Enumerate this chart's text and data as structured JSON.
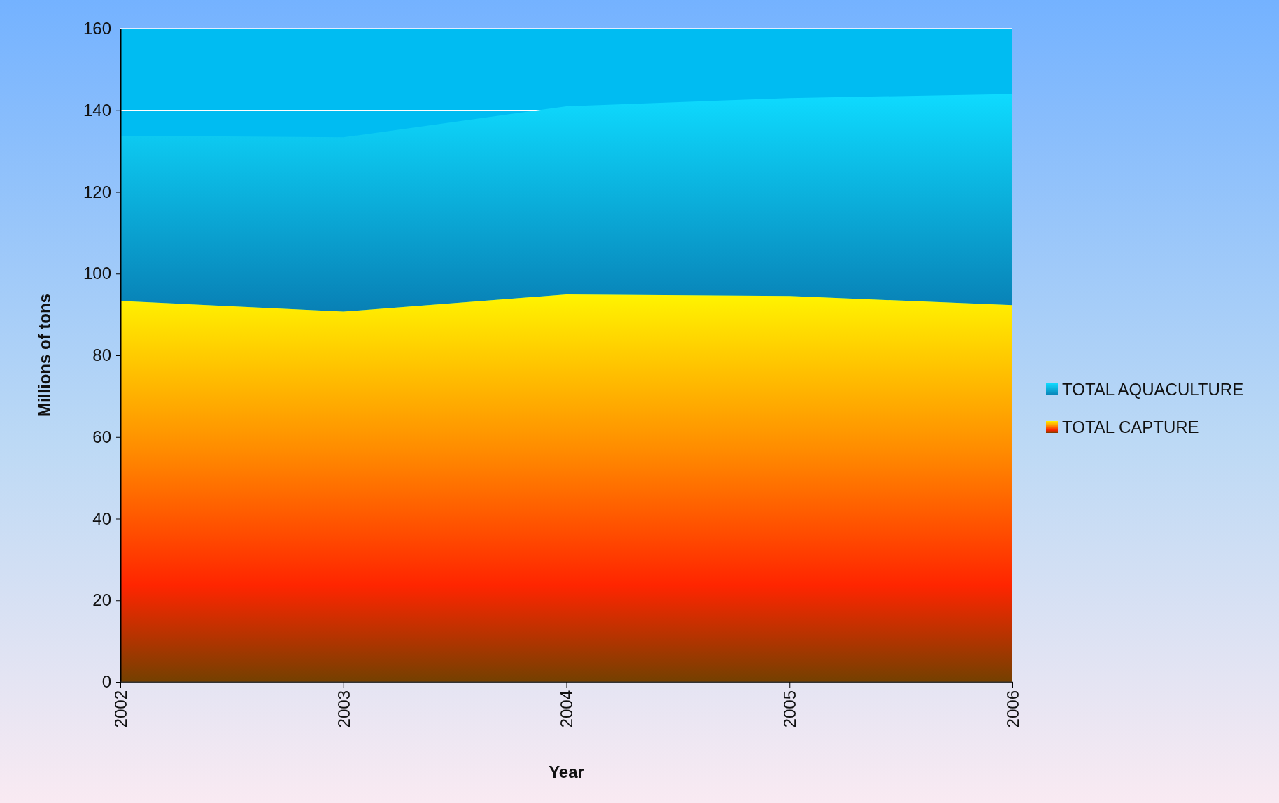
{
  "chart_data": {
    "type": "area",
    "stacked": true,
    "xlabel": "Year",
    "ylabel": "Millions of tons",
    "x": [
      2002,
      2003,
      2004,
      2005,
      2006
    ],
    "xlim": [
      2002,
      2006
    ],
    "xticks": [
      2002,
      2003,
      2004,
      2005,
      2006
    ],
    "ylim": [
      0,
      160
    ],
    "yticks": [
      0,
      20,
      40,
      60,
      80,
      100,
      120,
      140,
      160
    ],
    "grid": "y",
    "legend": "right",
    "series": [
      {
        "name": "TOTAL CAPTURE",
        "color": "#ff8c00",
        "values": [
          93.3,
          90.7,
          94.9,
          94.5,
          92.3
        ]
      },
      {
        "name": "TOTAL AQUACULTURE",
        "color": "#0a9fe0",
        "values": [
          40.5,
          42.7,
          46.1,
          48.5,
          51.7
        ]
      }
    ]
  }
}
